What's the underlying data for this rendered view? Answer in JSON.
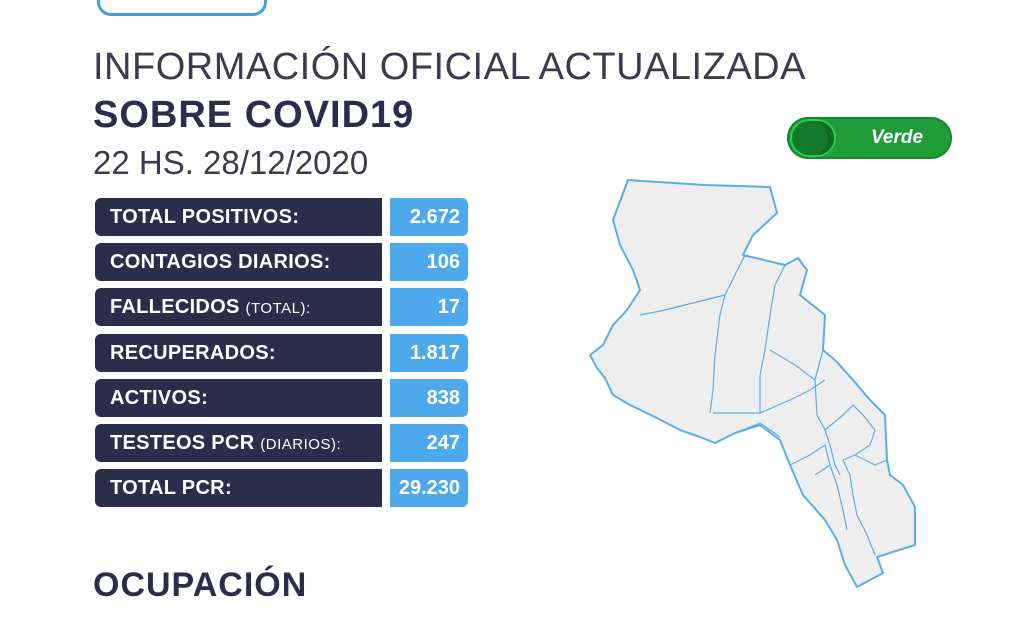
{
  "header": {
    "headline": "INFORMACIÓN OFICIAL ACTUALIZADA",
    "subheadline": "SOBRE COVID19",
    "datetime": "22 HS. 28/12/2020"
  },
  "stats": [
    {
      "label": "TOTAL POSITIVOS",
      "qualifier": "",
      "colon": ":",
      "value": "2.672"
    },
    {
      "label": "CONTAGIOS DIARIOS",
      "qualifier": "",
      "colon": ":",
      "value": "106"
    },
    {
      "label": "FALLECIDOS",
      "qualifier": "(TOTAL)",
      "colon": ":",
      "value": "17"
    },
    {
      "label": "RECUPERADOS",
      "qualifier": "",
      "colon": ":",
      "value": "1.817"
    },
    {
      "label": "ACTIVOS",
      "qualifier": "",
      "colon": ":",
      "value": "838"
    },
    {
      "label": "TESTEOS PCR",
      "qualifier": "(DIARIOS)",
      "colon": ":",
      "value": "247"
    },
    {
      "label": "TOTAL PCR",
      "qualifier": "",
      "colon": ":",
      "value": "29.230"
    }
  ],
  "status": {
    "label": "Verde",
    "color": "#1f9b3a"
  },
  "section": {
    "title": "OCUPACIÓN"
  },
  "colors": {
    "dark_navy": "#2b2d4a",
    "accent_blue": "#4da9ec",
    "map_fill": "#eeeeee",
    "map_stroke": "#5aaee6"
  }
}
